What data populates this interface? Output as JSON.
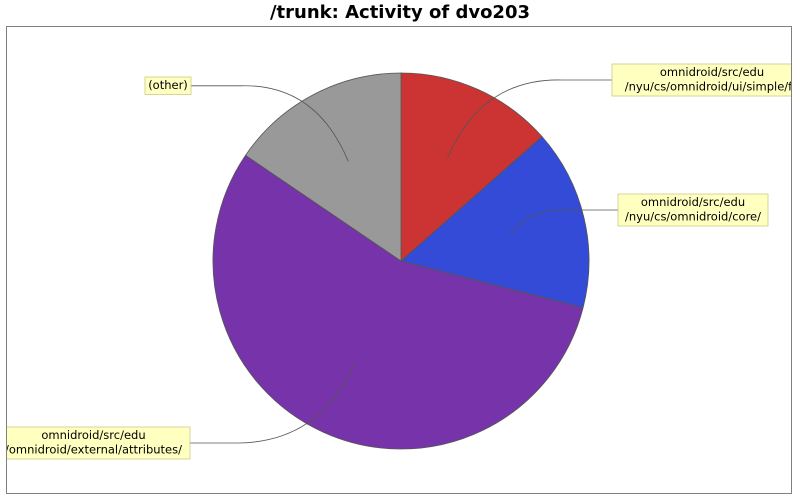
{
  "chart_data": {
    "type": "pie",
    "title": "/trunk: Activity of dvo203",
    "slices": [
      {
        "label": [
          "omnidroid/src/edu",
          "/nyu/cs/omnidroid/ui/simple/fa"
        ],
        "value": 13.5,
        "color": "#cc3333"
      },
      {
        "label": [
          "omnidroid/src/edu",
          "/nyu/cs/omnidroid/core/"
        ],
        "value": 15.5,
        "color": "#334bd6"
      },
      {
        "label": [
          "omnidroid/src/edu",
          "/omnidroid/external/attributes/"
        ],
        "value": 55.5,
        "color": "#7733aa"
      },
      {
        "label": [
          "(other)"
        ],
        "value": 15.5,
        "color": "#999999"
      }
    ],
    "legend": "none"
  }
}
